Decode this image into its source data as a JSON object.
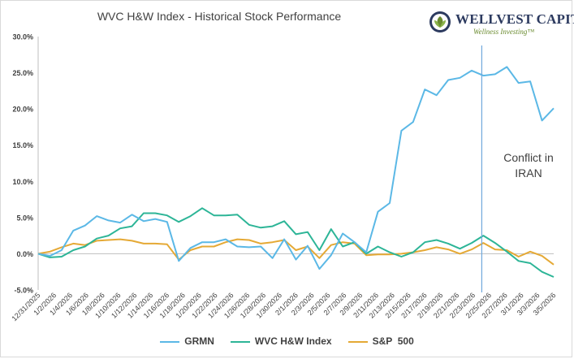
{
  "chart_data": {
    "type": "line",
    "title": "WVC H&W Index - Historical Stock Performance",
    "x": [
      "12/31/2025",
      "1/2/2026",
      "1/5/2026",
      "1/6/2026",
      "1/7/2026",
      "1/8/2026",
      "1/9/2026",
      "1/12/2026",
      "1/13/2026",
      "1/14/2026",
      "1/15/2026",
      "1/16/2026",
      "1/20/2026",
      "1/21/2026",
      "1/22/2026",
      "1/23/2026",
      "1/26/2026",
      "1/27/2026",
      "1/28/2026",
      "1/29/2026",
      "1/30/2026",
      "2/2/2026",
      "2/3/2026",
      "2/4/2026",
      "2/5/2026",
      "2/6/2026",
      "2/9/2026",
      "2/10/2026",
      "2/11/2026",
      "2/12/2026",
      "2/13/2026",
      "2/17/2026",
      "2/18/2026",
      "2/19/2026",
      "2/20/2026",
      "2/23/2026",
      "2/24/2026",
      "2/25/2026",
      "2/26/2026",
      "2/27/2026",
      "3/2/2026",
      "3/3/2026",
      "3/4/2026",
      "3/5/2026",
      "3/6/2026"
    ],
    "x_tick_labels": [
      "12/31/2025",
      "1/2/2026",
      "1/4/2026",
      "1/6/2026",
      "1/8/2026",
      "1/10/2026",
      "1/12/2026",
      "1/14/2026",
      "1/16/2026",
      "1/18/2026",
      "1/20/2026",
      "1/22/2026",
      "1/24/2026",
      "1/26/2026",
      "1/28/2026",
      "1/30/2026",
      "2/1/2026",
      "2/3/2026",
      "2/5/2026",
      "2/7/2026",
      "2/9/2026",
      "2/11/2026",
      "2/13/2026",
      "2/15/2026",
      "2/17/2026",
      "2/19/2026",
      "2/21/2026",
      "2/23/2026",
      "2/25/2026",
      "2/27/2026",
      "3/1/2026",
      "3/3/2026",
      "3/5/2026"
    ],
    "y_tick_labels": [
      "30.0%",
      "25.0%",
      "20.0%",
      "15.0%",
      "10.0%",
      "5.0%",
      "0.0%",
      "-5.0%"
    ],
    "ylim": [
      -5,
      30
    ],
    "y_unit": "%",
    "grid": false,
    "legend_position": "bottom",
    "series": [
      {
        "name": "GRMN",
        "color": "#5bb8e6",
        "values": [
          0.0,
          -0.3,
          0.5,
          3.2,
          3.9,
          5.2,
          4.6,
          4.3,
          5.4,
          4.5,
          4.8,
          4.4,
          -1.0,
          0.8,
          1.6,
          1.6,
          2.0,
          1.0,
          0.9,
          1.0,
          -0.6,
          2.0,
          -0.8,
          1.1,
          -2.1,
          -0.2,
          2.8,
          1.6,
          0.2,
          5.8,
          7.0,
          17.0,
          18.2,
          22.7,
          21.9,
          24.0,
          24.3,
          25.3,
          24.6,
          24.8,
          25.8,
          23.6,
          23.8,
          18.4,
          20.1
        ]
      },
      {
        "name": "WVC H&W Index",
        "color": "#2db597",
        "values": [
          0.0,
          -0.5,
          -0.4,
          0.5,
          1.0,
          2.1,
          2.5,
          3.5,
          3.8,
          5.6,
          5.6,
          5.3,
          4.4,
          5.2,
          6.3,
          5.3,
          5.3,
          5.4,
          4.0,
          3.6,
          3.8,
          4.5,
          2.7,
          3.0,
          0.5,
          3.4,
          1.0,
          1.6,
          0.0,
          1.0,
          0.2,
          -0.4,
          0.2,
          1.6,
          1.9,
          1.4,
          0.7,
          1.5,
          2.5,
          1.5,
          0.3,
          -1.0,
          -1.3,
          -2.5,
          -3.2
        ]
      },
      {
        "name": "S&P  500",
        "color": "#e5a935",
        "values": [
          0.0,
          0.3,
          0.9,
          1.4,
          1.2,
          1.8,
          1.9,
          2.0,
          1.8,
          1.4,
          1.4,
          1.3,
          -0.8,
          0.5,
          1.0,
          1.0,
          1.6,
          2.0,
          1.9,
          1.4,
          1.6,
          1.9,
          0.5,
          1.0,
          -0.6,
          1.2,
          1.6,
          1.4,
          -0.2,
          -0.1,
          -0.1,
          0.0,
          0.2,
          0.5,
          0.9,
          0.6,
          0.0,
          0.6,
          1.5,
          0.6,
          0.5,
          -0.4,
          0.3,
          -0.3,
          -1.5
        ]
      }
    ],
    "annotation": {
      "text_line1": "Conflict in",
      "text_line2": "IRAN",
      "at_x": "2/26/2026"
    }
  },
  "logo": {
    "name": "WELLVEST CAPITAL",
    "tagline": "Wellness Investing",
    "trademark": "™",
    "colors": {
      "navy": "#2c3a5f",
      "green": "#6a8b2f"
    }
  },
  "axis_color": "#bfbfbf",
  "text_color": "#404040"
}
